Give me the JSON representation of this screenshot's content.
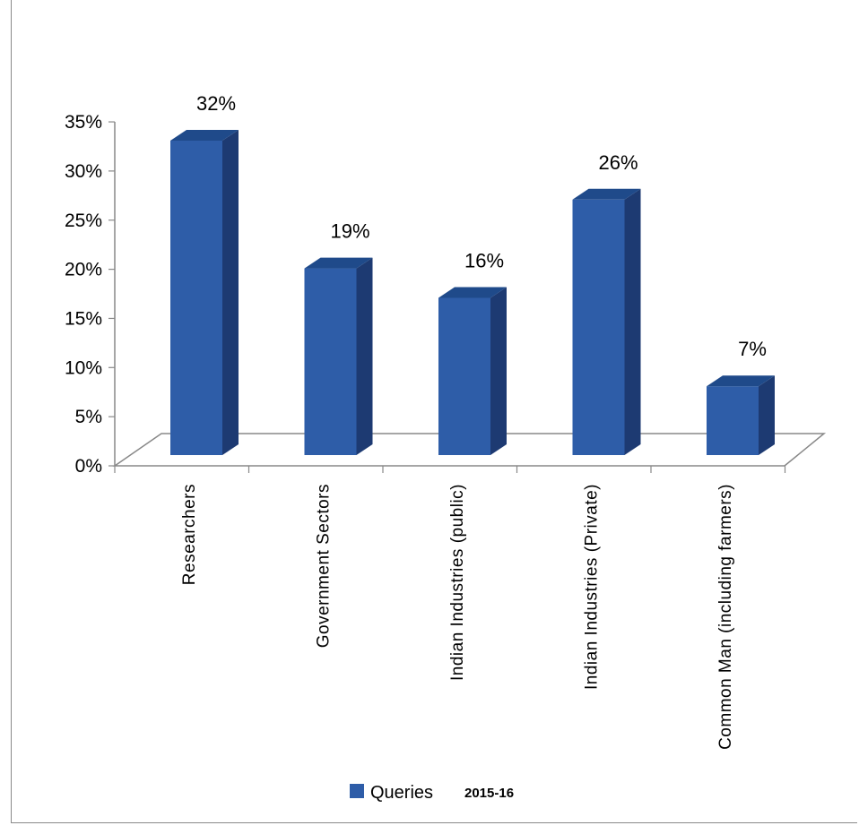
{
  "chart_data": {
    "type": "bar",
    "categories": [
      "Researchers",
      "Government Sectors",
      "Indian Industries (public)",
      "Indian Industries (Private)",
      "Common Man (including farmers)"
    ],
    "series": [
      {
        "name": "Queries",
        "values": [
          32,
          19,
          16,
          26,
          7
        ]
      }
    ],
    "data_labels": [
      "32%",
      "19%",
      "16%",
      "26%",
      "7%"
    ],
    "y_ticks": [
      "0%",
      "5%",
      "10%",
      "15%",
      "20%",
      "25%",
      "30%",
      "35%"
    ],
    "ylim": [
      0,
      35
    ],
    "y_unit": "%",
    "legend": {
      "position": "bottom",
      "extra_text": "2015-16"
    },
    "colors": {
      "bar_front": "#2e5da8",
      "bar_side": "#1d3a72",
      "bar_top": "#1f4a8a"
    },
    "style": "3d-column",
    "title": "",
    "xlabel": "",
    "ylabel": ""
  }
}
